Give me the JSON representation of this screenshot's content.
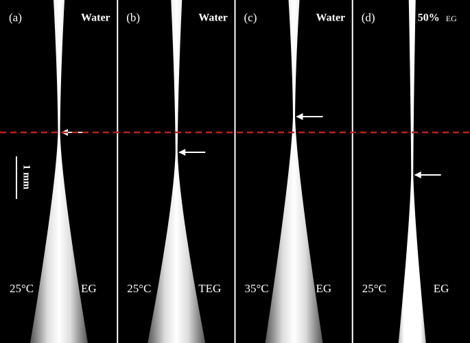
{
  "panels": [
    {
      "label": "(a)",
      "top_label": "Water",
      "bottom_left": "25°C",
      "bottom_right": "EG"
    },
    {
      "label": "(b)",
      "top_label": "Water",
      "bottom_left": "25°C",
      "bottom_right": "TEG"
    },
    {
      "label": "(c)",
      "top_label": "Water",
      "bottom_left": "35°C",
      "bottom_right": "EG"
    },
    {
      "label": "(d)",
      "top_label": "50%",
      "top_label_suffix": "EG",
      "bottom_left": "25°C",
      "bottom_right": "EG"
    }
  ],
  "scale_bar": "1 mm"
}
